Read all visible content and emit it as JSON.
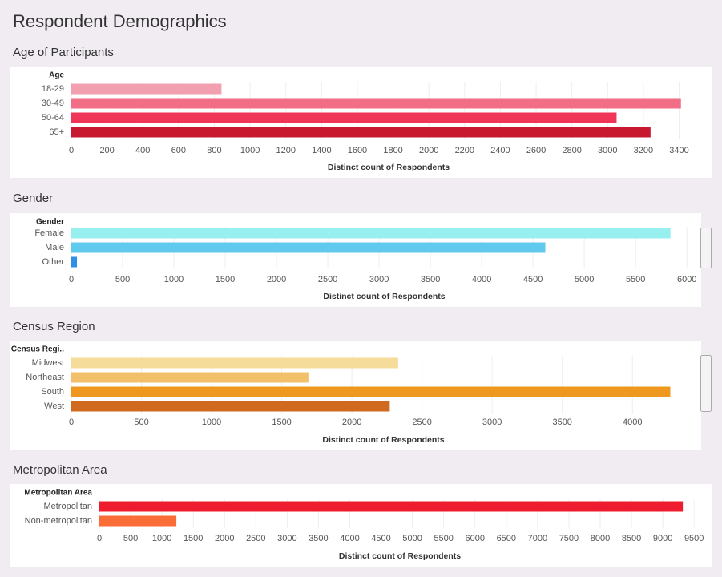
{
  "title": "Respondent Demographics",
  "chart_data": [
    {
      "type": "bar",
      "title": "Age of Participants",
      "field_label": "Age",
      "categories": [
        "18-29",
        "30-49",
        "50-64",
        "65+"
      ],
      "values": [
        840,
        3410,
        3050,
        3240
      ],
      "colors": [
        "#f2a0af",
        "#f26d86",
        "#ef3659",
        "#c8182f"
      ],
      "xlabel": "Distinct count of Respondents",
      "xlim": [
        0,
        3550
      ],
      "xticks": [
        0,
        200,
        400,
        600,
        800,
        1000,
        1200,
        1400,
        1600,
        1800,
        2000,
        2200,
        2400,
        2600,
        2800,
        3000,
        3200,
        3400
      ],
      "grid": true
    },
    {
      "type": "bar",
      "title": "Gender",
      "field_label": "Gender",
      "categories": [
        "Female",
        "Male",
        "Other"
      ],
      "values": [
        5840,
        4620,
        55
      ],
      "colors": [
        "#98eff0",
        "#60c9ee",
        "#2f8fe6"
      ],
      "xlabel": "Distinct count of Respondents",
      "xlim": [
        0,
        6100
      ],
      "xticks": [
        0,
        500,
        1000,
        1500,
        2000,
        2500,
        3000,
        3500,
        4000,
        4500,
        5000,
        5500,
        6000
      ],
      "grid": true
    },
    {
      "type": "bar",
      "title": "Census Region",
      "field_label": "Census Regi..",
      "categories": [
        "Midwest",
        "Northeast",
        "South",
        "West"
      ],
      "values": [
        2330,
        1690,
        4270,
        2270
      ],
      "colors": [
        "#f5dc9a",
        "#f2c06a",
        "#ef9820",
        "#d06a1e"
      ],
      "xlabel": "Distinct count of Respondents",
      "xlim": [
        0,
        4450
      ],
      "xticks": [
        0,
        500,
        1000,
        1500,
        2000,
        2500,
        3000,
        3500,
        4000
      ],
      "grid": true
    },
    {
      "type": "bar",
      "title": "Metropolitan Area",
      "field_label": "Metropolitan Area",
      "categories": [
        "Metropolitan",
        "Non-metropolitan"
      ],
      "values": [
        9320,
        1230
      ],
      "colors": [
        "#ee1c2e",
        "#fb6d37"
      ],
      "xlabel": "Distinct count of Respondents",
      "xlim": [
        0,
        9600
      ],
      "xticks": [
        0,
        500,
        1000,
        1500,
        2000,
        2500,
        3000,
        3500,
        4000,
        4500,
        5000,
        5500,
        6000,
        6500,
        7000,
        7500,
        8000,
        8500,
        9000,
        9500
      ],
      "grid": true
    }
  ]
}
